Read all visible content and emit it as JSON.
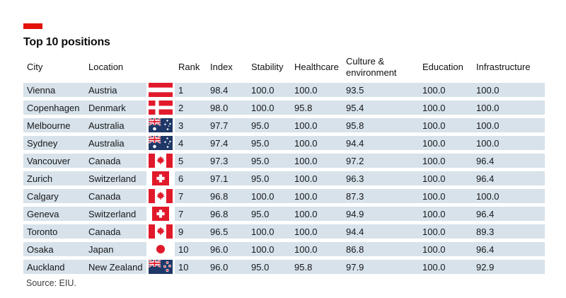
{
  "colors": {
    "accent_red": "#E3120B",
    "row_fill": "#D7E2EA",
    "flag_navy": "#1F3868",
    "flag_red": "#E11A2B"
  },
  "chart_data": {
    "type": "table",
    "title": "Top 10 positions",
    "source": "Source: EIU.",
    "columns": [
      "City",
      "Location",
      "Rank",
      "Index",
      "Stability",
      "Healthcare",
      "Culture & environment",
      "Education",
      "Infrastructure"
    ],
    "rows": [
      {
        "city": "Vienna",
        "location": "Austria",
        "flag": "austria-flag",
        "rank": "1",
        "index": "98.4",
        "stability": "100.0",
        "healthcare": "100.0",
        "culture": "93.5",
        "education": "100.0",
        "infrastructure": "100.0"
      },
      {
        "city": "Copenhagen",
        "location": "Denmark",
        "flag": "denmark-flag",
        "rank": "2",
        "index": "98.0",
        "stability": "100.0",
        "healthcare": "95.8",
        "culture": "95.4",
        "education": "100.0",
        "infrastructure": "100.0"
      },
      {
        "city": "Melbourne",
        "location": "Australia",
        "flag": "australia-flag",
        "rank": "3",
        "index": "97.7",
        "stability": "95.0",
        "healthcare": "100.0",
        "culture": "95.8",
        "education": "100.0",
        "infrastructure": "100.0"
      },
      {
        "city": "Sydney",
        "location": "Australia",
        "flag": "australia-flag",
        "rank": "4",
        "index": "97.4",
        "stability": "95.0",
        "healthcare": "100.0",
        "culture": "94.4",
        "education": "100.0",
        "infrastructure": "100.0"
      },
      {
        "city": "Vancouver",
        "location": "Canada",
        "flag": "canada-flag",
        "rank": "5",
        "index": "97.3",
        "stability": "95.0",
        "healthcare": "100.0",
        "culture": "97.2",
        "education": "100.0",
        "infrastructure": "96.4"
      },
      {
        "city": "Zurich",
        "location": "Switzerland",
        "flag": "switzerland-flag",
        "rank": "6",
        "index": "97.1",
        "stability": "95.0",
        "healthcare": "100.0",
        "culture": "96.3",
        "education": "100.0",
        "infrastructure": "96.4"
      },
      {
        "city": "Calgary",
        "location": "Canada",
        "flag": "canada-flag",
        "rank": "7",
        "index": "96.8",
        "stability": "100.0",
        "healthcare": "100.0",
        "culture": "87.3",
        "education": "100.0",
        "infrastructure": "100.0"
      },
      {
        "city": "Geneva",
        "location": "Switzerland",
        "flag": "switzerland-flag",
        "rank": "7",
        "index": "96.8",
        "stability": "95.0",
        "healthcare": "100.0",
        "culture": "94.9",
        "education": "100.0",
        "infrastructure": "96.4"
      },
      {
        "city": "Toronto",
        "location": "Canada",
        "flag": "canada-flag",
        "rank": "9",
        "index": "96.5",
        "stability": "100.0",
        "healthcare": "100.0",
        "culture": "94.4",
        "education": "100.0",
        "infrastructure": "89.3"
      },
      {
        "city": "Osaka",
        "location": "Japan",
        "flag": "japan-flag",
        "rank": "10",
        "index": "96.0",
        "stability": "100.0",
        "healthcare": "100.0",
        "culture": "86.8",
        "education": "100.0",
        "infrastructure": "96.4"
      },
      {
        "city": "Auckland",
        "location": "New Zealand",
        "flag": "new-zealand-flag",
        "rank": "10",
        "index": "96.0",
        "stability": "95.0",
        "healthcare": "95.8",
        "culture": "97.9",
        "education": "100.0",
        "infrastructure": "92.9"
      }
    ]
  }
}
